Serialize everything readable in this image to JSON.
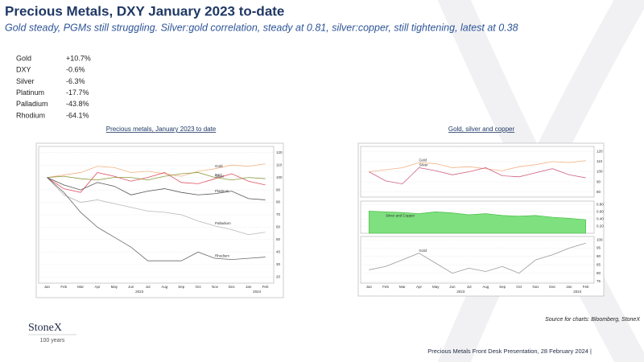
{
  "header": {
    "title": "Precious Metals, DXY January 2023 to-date",
    "subtitle": "Gold steady, PGMs still struggling.  Silver:gold correlation, steady at 0.81, silver:copper, still tightening, latest at 0.38"
  },
  "performance": {
    "rows": [
      [
        "Gold",
        "+10.7%"
      ],
      [
        "DXY",
        "-0.6%"
      ],
      [
        "Silver",
        "-6.3%"
      ],
      [
        "Platinum",
        "-17.7%"
      ],
      [
        "Palladium",
        "-43.8%"
      ],
      [
        "Rhodium",
        "-64.1%"
      ]
    ]
  },
  "captions": [
    "Precious metals, January 2023 to date",
    "Gold, silver and copper"
  ],
  "chart_data": [
    {
      "type": "line",
      "categories": [
        "Jan",
        "Feb",
        "Mar",
        "Apr",
        "May",
        "Jun",
        "Jul",
        "Aug",
        "Sep",
        "Oct",
        "Nov",
        "Dec",
        "Jan",
        "Feb"
      ],
      "x_group_labels": [
        "2023",
        "2024"
      ],
      "ylim": [
        15,
        125
      ],
      "yticks": [
        20,
        30,
        40,
        50,
        60,
        70,
        80,
        90,
        100,
        110,
        120
      ],
      "grid": true,
      "series": [
        {
          "name": "Gold",
          "color": "#f4b183",
          "values": [
            100,
            102,
            104,
            109,
            108,
            104,
            105,
            103,
            101,
            105,
            107,
            110,
            109,
            111
          ]
        },
        {
          "name": "Silver",
          "color": "#e05060",
          "values": [
            100,
            91,
            88,
            104,
            101,
            97,
            100,
            104,
            96,
            95,
            99,
            103,
            97,
            94
          ]
        },
        {
          "name": "DXY",
          "color": "#8a9a3c",
          "values": [
            100,
            101,
            99,
            98,
            100,
            100,
            98,
            101,
            103,
            104,
            100,
            98,
            100,
            99
          ]
        },
        {
          "name": "Platinum",
          "color": "#555555",
          "values": [
            100,
            94,
            90,
            96,
            93,
            86,
            89,
            91,
            88,
            86,
            87,
            89,
            83,
            82
          ]
        },
        {
          "name": "Palladium",
          "color": "#b8b8b8",
          "values": [
            100,
            86,
            80,
            82,
            79,
            76,
            73,
            72,
            70,
            65,
            61,
            58,
            54,
            56
          ]
        },
        {
          "name": "Rhodium",
          "color": "#6a6a6a",
          "values": [
            100,
            88,
            72,
            60,
            52,
            44,
            33,
            33,
            33,
            40,
            35,
            34,
            35,
            36
          ]
        }
      ]
    },
    {
      "type": "line",
      "ylim": [
        75,
        125
      ],
      "yticks": [
        80,
        90,
        100,
        110,
        120
      ],
      "grid": true,
      "series": [
        {
          "name": "Gold",
          "color": "#f4b183",
          "values": [
            100,
            102,
            104,
            109,
            108,
            104,
            105,
            103,
            101,
            105,
            107,
            110,
            109,
            111
          ]
        },
        {
          "name": "Silver",
          "color": "#d06080",
          "values": [
            100,
            91,
            88,
            104,
            101,
            97,
            100,
            104,
            96,
            95,
            99,
            103,
            97,
            94
          ]
        }
      ]
    },
    {
      "type": "area",
      "ylim": [
        0,
        0.9
      ],
      "yticks": [
        {
          "value": 0.2,
          "label": "0.20"
        },
        {
          "value": 0.4,
          "label": "0.40"
        },
        {
          "value": 0.6,
          "label": "0.60"
        },
        {
          "value": 0.8,
          "label": "0.80"
        }
      ],
      "grid": true,
      "series": [
        {
          "name": "Silver and Copper",
          "color": "#7ee07e",
          "values": [
            0.62,
            0.6,
            0.58,
            0.55,
            0.6,
            0.57,
            0.52,
            0.55,
            0.5,
            0.48,
            0.5,
            0.45,
            0.42,
            0.38
          ]
        }
      ]
    },
    {
      "type": "line",
      "categories": [
        "Jan",
        "Feb",
        "Mar",
        "Apr",
        "May",
        "Jun",
        "Jul",
        "Aug",
        "Sep",
        "Oct",
        "Nov",
        "Dec",
        "Jan",
        "Feb"
      ],
      "x_group_labels": [
        "2023",
        "2024"
      ],
      "ylim": [
        74,
        102
      ],
      "yticks": [
        75,
        80,
        85,
        90,
        95,
        100
      ],
      "grid": true,
      "series": [
        {
          "name": "Gold",
          "color": "#999999",
          "values": [
            82,
            84,
            88,
            92,
            86,
            80,
            83,
            81,
            84,
            80,
            88,
            91,
            95,
            98
          ]
        }
      ]
    }
  ],
  "source": "Source for charts: Bloomberg, StoneX",
  "logo": {
    "name": "StoneX",
    "tagline": "100 years"
  },
  "footer": "Precious Metals Front Desk Presentation, 28 February 2024 |"
}
